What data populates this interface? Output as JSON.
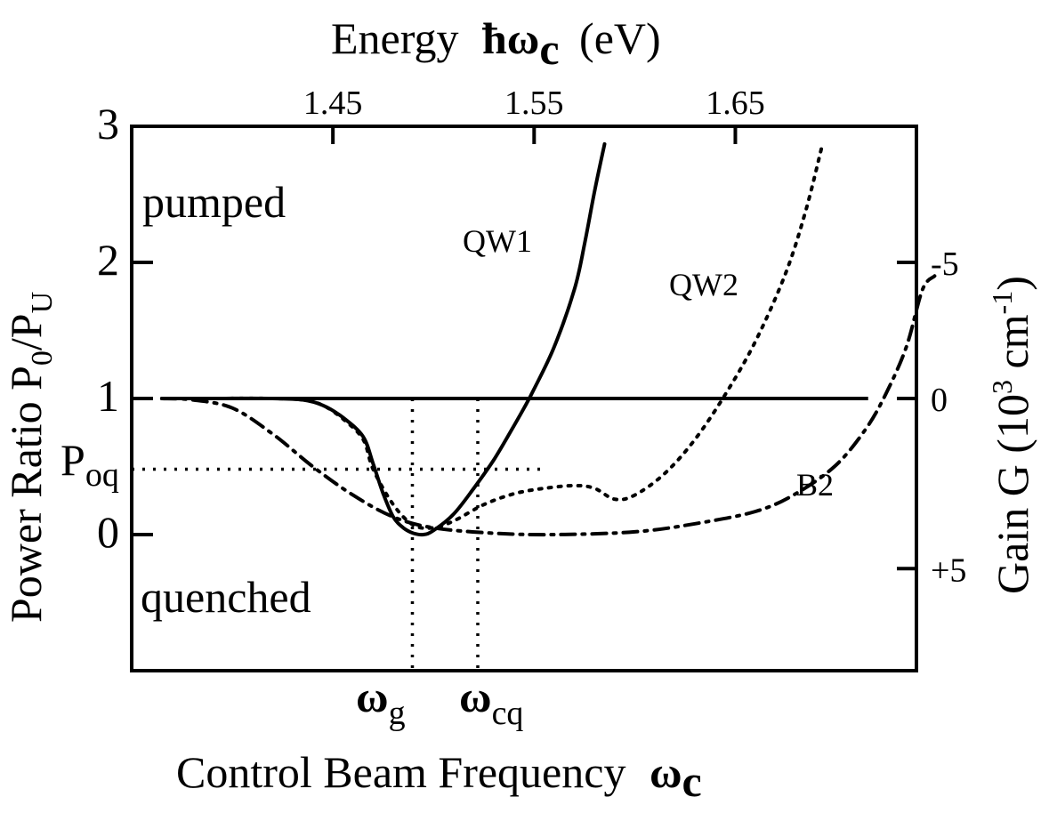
{
  "chart_data": {
    "type": "line",
    "xlabel_bottom": "Control Beam Frequency",
    "xlabel_bottom_symbol": "ω",
    "xlabel_bottom_symbol_sub": "c",
    "xlabel_top": "Energy",
    "xlabel_top_symbol": "ħω",
    "xlabel_top_symbol_sub": "c",
    "xlabel_top_unit": "(eV)",
    "ylabel_left_main": "Power Ratio P",
    "ylabel_left_sub1": "0",
    "ylabel_left_slash": "/P",
    "ylabel_left_sub2": "U",
    "ylabel_right_main": "Gain G (10",
    "ylabel_right_sup": "3",
    "ylabel_right_unit": " cm",
    "ylabel_right_sup2": "-1",
    "ylabel_right_close": ")",
    "top_axis": {
      "range": [
        1.35,
        1.74
      ],
      "ticks": [
        1.45,
        1.55,
        1.65
      ],
      "tick_labels": [
        "1.45",
        "1.55",
        "1.65"
      ]
    },
    "left_axis": {
      "range": [
        -1.0,
        3.0
      ],
      "ticks": [
        0,
        1,
        2,
        3
      ],
      "tick_labels": [
        "0",
        "1",
        "2",
        "3"
      ]
    },
    "right_axis": {
      "ticks": [
        -5,
        0,
        5
      ],
      "tick_labels": [
        "-5",
        "0",
        "+5"
      ]
    },
    "extra_tick": {
      "label": "P",
      "sub": "oq",
      "value": 0.48
    },
    "region_labels": {
      "upper": "pumped",
      "lower": "quenched"
    },
    "reference_line": {
      "y": 1
    },
    "markers": [
      {
        "symbol": "ω",
        "sub": "g",
        "x": 1.4895
      },
      {
        "symbol": "ω",
        "sub": "cq",
        "x": 1.522
      }
    ],
    "poq_line": {
      "y": 0.48,
      "x_end": 1.556
    },
    "series": [
      {
        "name": "QW1",
        "style": "solid",
        "points": [
          [
            1.365,
            1.0
          ],
          [
            1.39,
            1.0
          ],
          [
            1.42,
            1.0
          ],
          [
            1.435,
            0.99
          ],
          [
            1.445,
            0.95
          ],
          [
            1.455,
            0.86
          ],
          [
            1.465,
            0.72
          ],
          [
            1.47,
            0.52
          ],
          [
            1.475,
            0.3
          ],
          [
            1.48,
            0.13
          ],
          [
            1.485,
            0.05
          ],
          [
            1.49,
            0.01
          ],
          [
            1.495,
            0.0
          ],
          [
            1.5,
            0.03
          ],
          [
            1.51,
            0.15
          ],
          [
            1.52,
            0.34
          ],
          [
            1.53,
            0.55
          ],
          [
            1.54,
            0.8
          ],
          [
            1.545,
            0.93
          ],
          [
            1.55,
            1.07
          ],
          [
            1.56,
            1.38
          ],
          [
            1.57,
            1.8
          ],
          [
            1.575,
            2.13
          ],
          [
            1.58,
            2.52
          ],
          [
            1.585,
            2.87
          ]
        ]
      },
      {
        "name": "QW2",
        "style": "dotted",
        "points": [
          [
            1.365,
            1.0
          ],
          [
            1.39,
            1.0
          ],
          [
            1.42,
            1.0
          ],
          [
            1.435,
            0.99
          ],
          [
            1.445,
            0.95
          ],
          [
            1.455,
            0.85
          ],
          [
            1.465,
            0.7
          ],
          [
            1.47,
            0.48
          ],
          [
            1.48,
            0.22
          ],
          [
            1.49,
            0.07
          ],
          [
            1.5,
            0.05
          ],
          [
            1.51,
            0.1
          ],
          [
            1.525,
            0.22
          ],
          [
            1.54,
            0.3
          ],
          [
            1.555,
            0.34
          ],
          [
            1.57,
            0.36
          ],
          [
            1.58,
            0.34
          ],
          [
            1.59,
            0.26
          ],
          [
            1.6,
            0.29
          ],
          [
            1.615,
            0.45
          ],
          [
            1.63,
            0.7
          ],
          [
            1.645,
            1.03
          ],
          [
            1.66,
            1.42
          ],
          [
            1.675,
            1.92
          ],
          [
            1.685,
            2.38
          ],
          [
            1.693,
            2.85
          ]
        ]
      },
      {
        "name": "B2",
        "style": "dash-dot",
        "points": [
          [
            1.365,
            1.0
          ],
          [
            1.38,
            0.99
          ],
          [
            1.4,
            0.93
          ],
          [
            1.42,
            0.74
          ],
          [
            1.44,
            0.5
          ],
          [
            1.46,
            0.29
          ],
          [
            1.48,
            0.13
          ],
          [
            1.5,
            0.05
          ],
          [
            1.53,
            0.01
          ],
          [
            1.56,
            0.0
          ],
          [
            1.6,
            0.02
          ],
          [
            1.63,
            0.08
          ],
          [
            1.66,
            0.17
          ],
          [
            1.68,
            0.3
          ],
          [
            1.7,
            0.51
          ],
          [
            1.715,
            0.78
          ],
          [
            1.725,
            1.04
          ],
          [
            1.735,
            1.38
          ],
          [
            1.743,
            1.8
          ],
          [
            1.749,
            1.9
          ]
        ]
      }
    ]
  }
}
